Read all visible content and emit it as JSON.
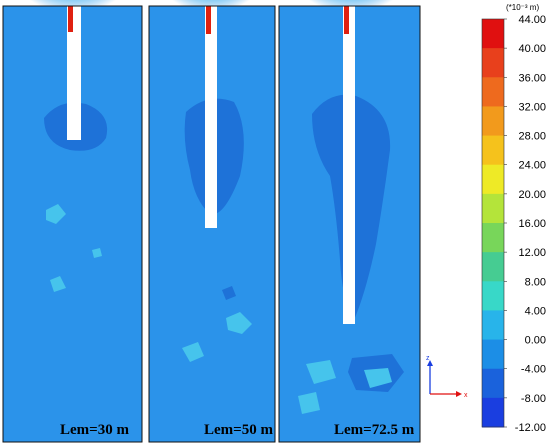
{
  "panels": [
    {
      "label": "Lem=30 m",
      "embed_length_m": 30
    },
    {
      "label": "Lem=50 m",
      "embed_length_m": 50
    },
    {
      "label": "Lem=72.5 m",
      "embed_length_m": 72.5
    }
  ],
  "colorbar": {
    "unit": "(*10⁻³ m)",
    "levels": [
      "44.00",
      "40.00",
      "36.00",
      "32.00",
      "28.00",
      "24.00",
      "20.00",
      "16.00",
      "12.00",
      "8.00",
      "4.00",
      "0.00",
      "-4.00",
      "-8.00",
      "-12.00"
    ],
    "colors": [
      "#e01010",
      "#e8401c",
      "#ee6a1e",
      "#f29a1c",
      "#f5c21c",
      "#eeea26",
      "#b4e43a",
      "#78d65a",
      "#46cc92",
      "#38d8c8",
      "#28b4ea",
      "#1c8ee6",
      "#1a62dc",
      "#1a3ee0"
    ]
  },
  "triad": {
    "z": "z",
    "x": "x"
  },
  "colors": {
    "field": "#2b93ea",
    "field_dark": "#1e72d8",
    "field_light": "#46c4ec",
    "pile": "#ffffff",
    "hot": "#e02010"
  }
}
